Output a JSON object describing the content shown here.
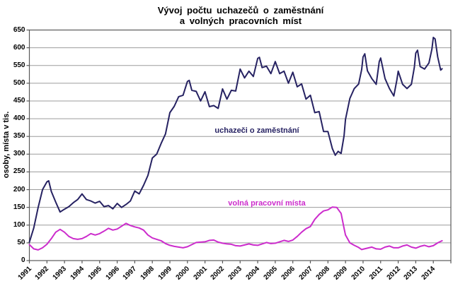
{
  "title": {
    "line1": "Vývoj počtu uchazečů o zaměstnání",
    "line2": "a volných pracovních míst"
  },
  "chart_data": {
    "type": "line",
    "title": "Vývoj počtu uchazečů o zaměstnání a volných pracovních míst",
    "xlabel": "",
    "ylabel": "osoby, místa v tis.",
    "ylim": [
      0,
      650
    ],
    "xlim": [
      1991,
      2015
    ],
    "y_tick_labels": [
      "0",
      "50",
      "100",
      "150",
      "200",
      "250",
      "300",
      "350",
      "400",
      "450",
      "500",
      "550",
      "600",
      "650"
    ],
    "x_tick_labels": [
      "1991",
      "1992",
      "1993",
      "1994",
      "1995",
      "1996",
      "1997",
      "1998",
      "1999",
      "2000",
      "2001",
      "2002",
      "2003",
      "2004",
      "2005",
      "2006",
      "2007",
      "2008",
      "2009",
      "2010",
      "2011",
      "2012",
      "2013",
      "2014"
    ],
    "grid": "horizontal",
    "legend_position": "inline-annotations",
    "colors": {
      "axis": "#595959",
      "grid": "#9c9c9c",
      "series1": "#262262",
      "series2": "#cc2ccc"
    },
    "annotations": [
      {
        "text": "uchazeči o zaměstnání",
        "color": "#262262"
      },
      {
        "text": "volná pracovní místa",
        "color": "#cc2ccc"
      }
    ],
    "series": [
      {
        "name": "uchazeči o zaměstnání",
        "color": "#262262",
        "unit": "tis. osob",
        "points": [
          [
            1991.0,
            52
          ],
          [
            1991.25,
            92
          ],
          [
            1991.5,
            150
          ],
          [
            1991.75,
            200
          ],
          [
            1992.0,
            222
          ],
          [
            1992.1,
            225
          ],
          [
            1992.25,
            195
          ],
          [
            1992.5,
            165
          ],
          [
            1992.75,
            137
          ],
          [
            1993.0,
            145
          ],
          [
            1993.25,
            152
          ],
          [
            1993.5,
            163
          ],
          [
            1993.75,
            172
          ],
          [
            1994.0,
            188
          ],
          [
            1994.25,
            172
          ],
          [
            1994.5,
            168
          ],
          [
            1994.75,
            162
          ],
          [
            1995.0,
            167
          ],
          [
            1995.25,
            152
          ],
          [
            1995.5,
            155
          ],
          [
            1995.75,
            146
          ],
          [
            1996.0,
            161
          ],
          [
            1996.25,
            150
          ],
          [
            1996.5,
            158
          ],
          [
            1996.75,
            168
          ],
          [
            1997.0,
            196
          ],
          [
            1997.25,
            188
          ],
          [
            1997.5,
            212
          ],
          [
            1997.75,
            240
          ],
          [
            1998.0,
            289
          ],
          [
            1998.25,
            300
          ],
          [
            1998.5,
            330
          ],
          [
            1998.75,
            357
          ],
          [
            1999.0,
            417
          ],
          [
            1999.25,
            435
          ],
          [
            1999.5,
            462
          ],
          [
            1999.75,
            466
          ],
          [
            2000.0,
            505
          ],
          [
            2000.1,
            508
          ],
          [
            2000.25,
            480
          ],
          [
            2000.5,
            477
          ],
          [
            2000.75,
            450
          ],
          [
            2001.0,
            476
          ],
          [
            2001.25,
            434
          ],
          [
            2001.5,
            437
          ],
          [
            2001.75,
            429
          ],
          [
            2002.0,
            484
          ],
          [
            2002.25,
            455
          ],
          [
            2002.5,
            480
          ],
          [
            2002.75,
            478
          ],
          [
            2003.0,
            540
          ],
          [
            2003.25,
            515
          ],
          [
            2003.5,
            534
          ],
          [
            2003.75,
            519
          ],
          [
            2004.0,
            570
          ],
          [
            2004.1,
            573
          ],
          [
            2004.25,
            544
          ],
          [
            2004.5,
            548
          ],
          [
            2004.75,
            527
          ],
          [
            2005.0,
            561
          ],
          [
            2005.25,
            527
          ],
          [
            2005.5,
            534
          ],
          [
            2005.75,
            500
          ],
          [
            2006.0,
            531
          ],
          [
            2006.25,
            490
          ],
          [
            2006.5,
            498
          ],
          [
            2006.75,
            455
          ],
          [
            2007.0,
            466
          ],
          [
            2007.25,
            417
          ],
          [
            2007.5,
            420
          ],
          [
            2007.75,
            364
          ],
          [
            2008.0,
            364
          ],
          [
            2008.25,
            316
          ],
          [
            2008.42,
            297
          ],
          [
            2008.58,
            308
          ],
          [
            2008.75,
            302
          ],
          [
            2008.92,
            352
          ],
          [
            2009.0,
            398
          ],
          [
            2009.25,
            457
          ],
          [
            2009.5,
            485
          ],
          [
            2009.75,
            498
          ],
          [
            2009.92,
            539
          ],
          [
            2010.0,
            574
          ],
          [
            2010.1,
            583
          ],
          [
            2010.25,
            535
          ],
          [
            2010.5,
            513
          ],
          [
            2010.75,
            497
          ],
          [
            2010.92,
            561
          ],
          [
            2011.0,
            571
          ],
          [
            2011.25,
            513
          ],
          [
            2011.5,
            485
          ],
          [
            2011.75,
            464
          ],
          [
            2011.92,
            508
          ],
          [
            2012.0,
            534
          ],
          [
            2012.25,
            497
          ],
          [
            2012.5,
            485
          ],
          [
            2012.75,
            497
          ],
          [
            2012.92,
            545
          ],
          [
            2013.0,
            585
          ],
          [
            2013.1,
            593
          ],
          [
            2013.25,
            547
          ],
          [
            2013.5,
            540
          ],
          [
            2013.75,
            557
          ],
          [
            2013.92,
            596
          ],
          [
            2014.0,
            629
          ],
          [
            2014.1,
            625
          ],
          [
            2014.25,
            574
          ],
          [
            2014.42,
            537
          ],
          [
            2014.5,
            541
          ]
        ]
      },
      {
        "name": "volná pracovní místa",
        "color": "#cc2ccc",
        "unit": "tis. míst",
        "points": [
          [
            1991.0,
            45
          ],
          [
            1991.25,
            33
          ],
          [
            1991.5,
            30
          ],
          [
            1991.75,
            36
          ],
          [
            1992.0,
            46
          ],
          [
            1992.25,
            62
          ],
          [
            1992.5,
            80
          ],
          [
            1992.75,
            88
          ],
          [
            1993.0,
            80
          ],
          [
            1993.25,
            68
          ],
          [
            1993.5,
            62
          ],
          [
            1993.75,
            60
          ],
          [
            1994.0,
            62
          ],
          [
            1994.25,
            68
          ],
          [
            1994.5,
            76
          ],
          [
            1994.75,
            72
          ],
          [
            1995.0,
            76
          ],
          [
            1995.25,
            83
          ],
          [
            1995.5,
            91
          ],
          [
            1995.75,
            86
          ],
          [
            1996.0,
            89
          ],
          [
            1996.25,
            97
          ],
          [
            1996.5,
            105
          ],
          [
            1996.75,
            99
          ],
          [
            1997.0,
            95
          ],
          [
            1997.25,
            92
          ],
          [
            1997.5,
            86
          ],
          [
            1997.75,
            72
          ],
          [
            1998.0,
            64
          ],
          [
            1998.25,
            60
          ],
          [
            1998.5,
            56
          ],
          [
            1998.75,
            48
          ],
          [
            1999.0,
            43
          ],
          [
            1999.25,
            40
          ],
          [
            1999.5,
            38
          ],
          [
            1999.75,
            36
          ],
          [
            2000.0,
            39
          ],
          [
            2000.25,
            45
          ],
          [
            2000.5,
            51
          ],
          [
            2000.75,
            52
          ],
          [
            2001.0,
            53
          ],
          [
            2001.25,
            57
          ],
          [
            2001.5,
            58
          ],
          [
            2001.75,
            52
          ],
          [
            2002.0,
            49
          ],
          [
            2002.25,
            47
          ],
          [
            2002.5,
            46
          ],
          [
            2002.75,
            42
          ],
          [
            2003.0,
            41
          ],
          [
            2003.25,
            44
          ],
          [
            2003.5,
            47
          ],
          [
            2003.75,
            44
          ],
          [
            2004.0,
            43
          ],
          [
            2004.25,
            47
          ],
          [
            2004.5,
            51
          ],
          [
            2004.75,
            48
          ],
          [
            2005.0,
            49
          ],
          [
            2005.25,
            53
          ],
          [
            2005.5,
            57
          ],
          [
            2005.75,
            54
          ],
          [
            2006.0,
            58
          ],
          [
            2006.25,
            68
          ],
          [
            2006.5,
            80
          ],
          [
            2006.75,
            90
          ],
          [
            2007.0,
            96
          ],
          [
            2007.25,
            116
          ],
          [
            2007.5,
            130
          ],
          [
            2007.75,
            140
          ],
          [
            2008.0,
            143
          ],
          [
            2008.25,
            151
          ],
          [
            2008.5,
            150
          ],
          [
            2008.75,
            133
          ],
          [
            2008.92,
            91
          ],
          [
            2009.0,
            72
          ],
          [
            2009.25,
            50
          ],
          [
            2009.5,
            43
          ],
          [
            2009.75,
            37
          ],
          [
            2009.92,
            31
          ],
          [
            2010.0,
            32
          ],
          [
            2010.25,
            35
          ],
          [
            2010.5,
            38
          ],
          [
            2010.75,
            33
          ],
          [
            2011.0,
            32
          ],
          [
            2011.25,
            38
          ],
          [
            2011.5,
            41
          ],
          [
            2011.75,
            36
          ],
          [
            2012.0,
            36
          ],
          [
            2012.25,
            41
          ],
          [
            2012.5,
            44
          ],
          [
            2012.75,
            38
          ],
          [
            2013.0,
            35
          ],
          [
            2013.25,
            40
          ],
          [
            2013.5,
            43
          ],
          [
            2013.75,
            39
          ],
          [
            2014.0,
            42
          ],
          [
            2014.25,
            50
          ],
          [
            2014.5,
            56
          ]
        ]
      }
    ]
  }
}
